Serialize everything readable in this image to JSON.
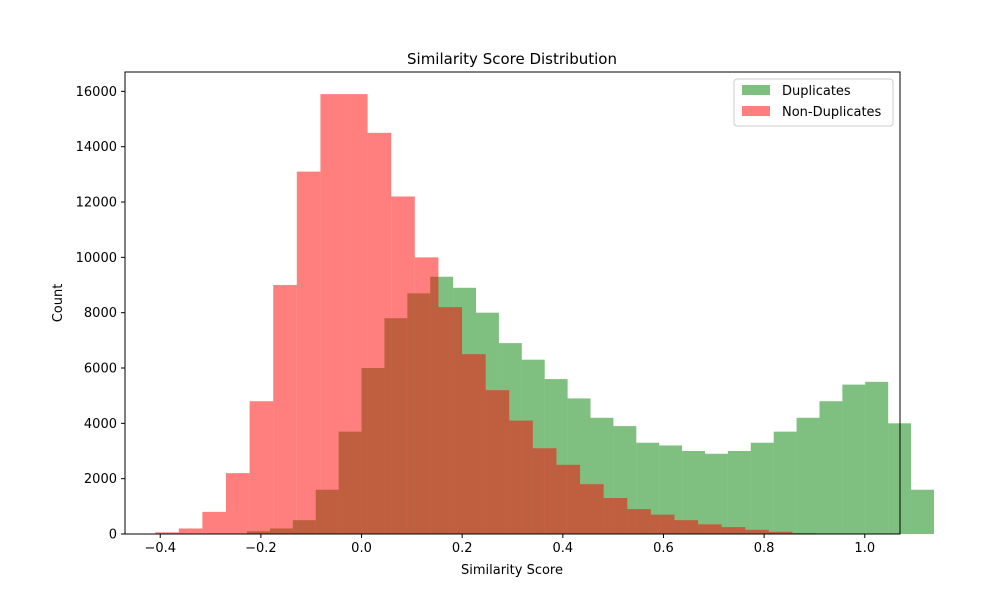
{
  "chart_data": {
    "type": "bar",
    "title": "Similarity Score Distribution",
    "xlabel": "Similarity Score",
    "ylabel": "Count",
    "xlim": [
      -0.47,
      1.07
    ],
    "ylim": [
      0,
      16700
    ],
    "xticks": [
      -0.4,
      -0.2,
      0.0,
      0.2,
      0.4,
      0.6,
      0.8,
      1.0
    ],
    "xtick_labels": [
      "−0.4",
      "−0.2",
      "0.0",
      "0.2",
      "0.4",
      "0.6",
      "0.8",
      "1.0"
    ],
    "yticks": [
      0,
      2000,
      4000,
      6000,
      8000,
      10000,
      12000,
      14000,
      16000
    ],
    "ytick_labels": [
      "0",
      "2000",
      "4000",
      "6000",
      "8000",
      "10000",
      "12000",
      "14000",
      "16000"
    ],
    "grid": false,
    "legend_position": "top-right",
    "overlap_color": "#c15c3f",
    "series": [
      {
        "name": "Duplicates",
        "color": "#008000",
        "alpha": 0.5,
        "bin_start": -0.364,
        "bin_width": 0.0455,
        "values": [
          0,
          0,
          0,
          100,
          200,
          500,
          1600,
          3700,
          6000,
          7800,
          8700,
          9300,
          8900,
          8000,
          6900,
          6300,
          5600,
          4900,
          4200,
          3900,
          3300,
          3200,
          3000,
          2900,
          3000,
          3300,
          3700,
          4200,
          4800,
          5400,
          5500,
          4000,
          1600
        ]
      },
      {
        "name": "Non-Duplicates",
        "color": "#ff0000",
        "alpha": 0.5,
        "bin_start": -0.41,
        "bin_width": 0.0469,
        "values": [
          60,
          200,
          800,
          2200,
          4800,
          9000,
          13100,
          15900,
          15900,
          14500,
          12200,
          10000,
          8200,
          6500,
          5200,
          4100,
          3100,
          2500,
          1800,
          1300,
          900,
          700,
          500,
          350,
          250,
          150,
          80,
          30,
          10,
          5
        ]
      }
    ]
  }
}
